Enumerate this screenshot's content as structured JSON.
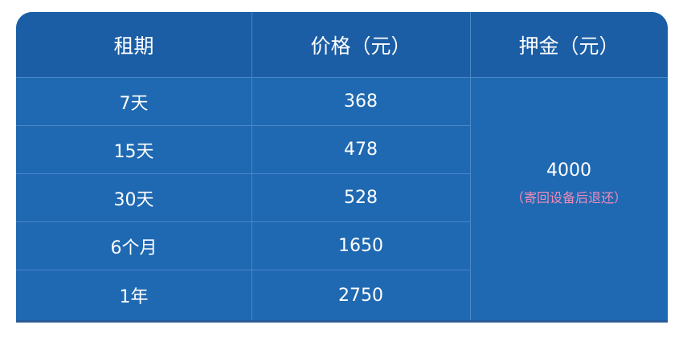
{
  "table": {
    "headers": [
      "租期",
      "价格（元）",
      "押金（元）"
    ],
    "rows": [
      {
        "period": "7天",
        "price": "368"
      },
      {
        "period": "15天",
        "price": "478"
      },
      {
        "period": "30天",
        "price": "528"
      },
      {
        "period": "6个月",
        "price": "1650"
      },
      {
        "period": "1年",
        "price": "2750"
      }
    ],
    "deposit": {
      "value": "4000",
      "note": "（寄回设备后退还）"
    }
  },
  "colors": {
    "header_bg": "#1b5ea5",
    "body_bg": "#1f69b2",
    "note": "#f08ab8"
  }
}
